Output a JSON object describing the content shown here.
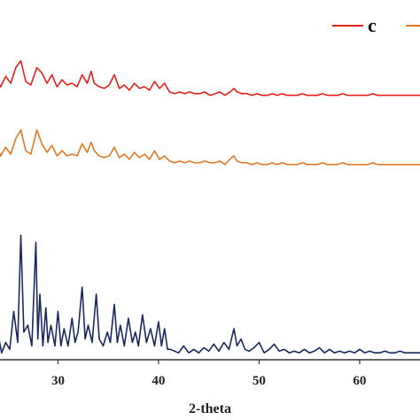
{
  "chart_data": {
    "type": "line",
    "xlabel": "2-theta",
    "ylabel": "",
    "xlim": [
      23,
      66
    ],
    "ylim": [
      0,
      100
    ],
    "grid": false,
    "x_ticks": [
      30,
      40,
      50,
      60
    ],
    "x_tick_labels": [
      "30",
      "40",
      "50",
      "60"
    ],
    "legend": {
      "placement": "top-right",
      "entries": [
        {
          "label": "c",
          "color": "#e8201c"
        },
        {
          "label": "",
          "color": "#e07a28"
        }
      ]
    },
    "series": [
      {
        "name": "c",
        "color": "#e8201c",
        "baseline": 76.5,
        "x": [
          23.0,
          23.3,
          23.8,
          24.3,
          24.8,
          25.3,
          25.8,
          26.3,
          26.8,
          27.3,
          27.9,
          28.4,
          28.9,
          29.4,
          29.9,
          30.4,
          30.9,
          31.4,
          31.9,
          32.4,
          32.9,
          33.3,
          33.6,
          34.1,
          34.6,
          35.1,
          35.6,
          36.1,
          36.6,
          37.1,
          37.6,
          38.1,
          38.6,
          39.1,
          39.6,
          40.1,
          40.6,
          41.1,
          41.6,
          42.1,
          42.6,
          43.1,
          43.6,
          44.1,
          44.6,
          45.1,
          45.6,
          46.1,
          46.6,
          47.1,
          47.5,
          47.8,
          48.3,
          48.8,
          49.3,
          49.8,
          50.3,
          50.8,
          51.3,
          51.8,
          52.3,
          52.8,
          53.3,
          53.8,
          54.3,
          54.8,
          55.3,
          55.8,
          56.3,
          56.8,
          57.3,
          57.8,
          58.3,
          58.8,
          59.3,
          59.8,
          60.3,
          60.8,
          61.3,
          61.8,
          62.3,
          62.8,
          63.3,
          63.8,
          64.3,
          64.8,
          65.3,
          65.8,
          66.0
        ],
        "y": [
          100.0,
          80.0,
          81.5,
          79.0,
          82.0,
          80.0,
          84.5,
          86.5,
          80.5,
          79.5,
          84.5,
          83.0,
          80.0,
          82.5,
          79.0,
          81.0,
          79.5,
          80.0,
          79.0,
          82.5,
          80.0,
          83.5,
          80.0,
          79.0,
          78.5,
          79.5,
          82.5,
          78.5,
          79.5,
          78.0,
          80.0,
          78.5,
          79.0,
          78.0,
          80.5,
          78.5,
          80.0,
          77.5,
          77.0,
          77.5,
          77.0,
          77.5,
          77.0,
          77.0,
          77.5,
          76.5,
          77.0,
          77.5,
          76.5,
          77.5,
          78.5,
          77.5,
          77.0,
          77.0,
          76.5,
          77.0,
          76.5,
          76.5,
          77.0,
          76.5,
          77.0,
          76.5,
          76.5,
          76.5,
          77.0,
          76.5,
          76.5,
          76.5,
          77.0,
          76.5,
          76.5,
          76.5,
          77.0,
          76.5,
          76.5,
          76.5,
          76.5,
          76.5,
          77.0,
          76.5,
          76.5,
          76.5,
          76.5,
          76.5,
          76.5,
          76.5,
          76.5,
          76.5,
          76.5
        ]
      },
      {
        "name": "",
        "color": "#e07a28",
        "baseline": 56.5,
        "x": [
          23.0,
          23.3,
          23.8,
          24.3,
          24.8,
          25.3,
          25.8,
          26.3,
          26.8,
          27.3,
          27.9,
          28.4,
          28.9,
          29.4,
          29.9,
          30.4,
          30.9,
          31.4,
          31.9,
          32.4,
          32.9,
          33.3,
          33.6,
          34.1,
          34.6,
          35.1,
          35.6,
          36.1,
          36.6,
          37.1,
          37.6,
          38.1,
          38.6,
          39.1,
          39.6,
          40.1,
          40.6,
          41.1,
          41.6,
          42.1,
          42.6,
          43.1,
          43.6,
          44.1,
          44.6,
          45.1,
          45.6,
          46.1,
          46.6,
          47.1,
          47.5,
          47.8,
          48.3,
          48.8,
          49.3,
          49.8,
          50.3,
          50.8,
          51.3,
          51.8,
          52.3,
          52.8,
          53.3,
          53.8,
          54.3,
          54.8,
          55.3,
          55.8,
          56.3,
          56.8,
          57.3,
          57.8,
          58.3,
          58.8,
          59.3,
          59.8,
          60.3,
          60.8,
          61.3,
          61.8,
          62.3,
          62.8,
          63.3,
          63.8,
          64.3,
          64.8,
          65.3,
          65.8,
          66.0
        ],
        "y": [
          78.0,
          60.0,
          62.5,
          59.0,
          61.5,
          59.5,
          64.0,
          66.5,
          60.5,
          59.5,
          66.5,
          62.5,
          60.0,
          62.0,
          59.0,
          60.5,
          59.0,
          59.5,
          59.0,
          62.5,
          60.0,
          63.0,
          60.5,
          59.0,
          58.5,
          59.0,
          61.5,
          58.5,
          59.5,
          58.0,
          60.0,
          58.5,
          59.5,
          58.0,
          60.5,
          58.0,
          59.0,
          57.5,
          57.0,
          57.5,
          57.0,
          57.5,
          57.0,
          57.0,
          57.5,
          57.0,
          57.0,
          57.5,
          56.5,
          58.0,
          59.0,
          57.5,
          57.0,
          57.0,
          56.5,
          57.0,
          56.5,
          56.5,
          57.0,
          56.5,
          57.0,
          56.5,
          56.5,
          56.5,
          57.0,
          56.5,
          56.5,
          56.5,
          57.0,
          56.5,
          56.5,
          56.5,
          57.0,
          56.5,
          56.5,
          56.5,
          56.5,
          56.5,
          57.0,
          56.5,
          56.5,
          56.5,
          56.5,
          56.5,
          56.5,
          56.5,
          56.5,
          56.5,
          56.5
        ]
      },
      {
        "name": "",
        "color": "#1a2a5e",
        "baseline": 1.5,
        "x": [
          23.0,
          23.2,
          23.5,
          24.0,
          24.4,
          24.8,
          25.2,
          25.6,
          26.0,
          26.3,
          26.6,
          27.0,
          27.4,
          27.8,
          28.0,
          28.2,
          28.5,
          28.8,
          29.0,
          29.3,
          29.7,
          30.0,
          30.3,
          30.6,
          31.0,
          31.4,
          31.7,
          32.0,
          32.4,
          32.7,
          33.0,
          33.4,
          33.8,
          34.1,
          34.5,
          34.9,
          35.2,
          35.6,
          35.9,
          36.2,
          36.6,
          37.0,
          37.4,
          37.7,
          38.0,
          38.4,
          38.8,
          39.2,
          39.6,
          40.0,
          40.3,
          40.6,
          40.9,
          41.2,
          41.6,
          42.0,
          42.5,
          43.0,
          43.5,
          44.0,
          44.5,
          45.0,
          45.5,
          46.0,
          46.5,
          47.0,
          47.5,
          47.8,
          48.2,
          48.6,
          49.0,
          49.5,
          50.0,
          50.5,
          51.0,
          51.5,
          52.0,
          52.5,
          53.0,
          53.5,
          54.0,
          54.5,
          55.0,
          55.5,
          56.0,
          56.5,
          57.0,
          57.5,
          58.0,
          58.5,
          59.0,
          59.5,
          60.0,
          60.5,
          61.0,
          61.5,
          62.0,
          62.5,
          63.0,
          63.5,
          64.0,
          64.5,
          65.0,
          65.5,
          66.0
        ],
        "y": [
          58.0,
          3.0,
          4.0,
          8.0,
          2.0,
          5.0,
          3.0,
          14.0,
          5.0,
          36.0,
          8.0,
          10.0,
          4.0,
          34.0,
          6.0,
          19.0,
          4.0,
          15.0,
          5.0,
          10.0,
          4.0,
          14.0,
          4.0,
          9.0,
          4.0,
          12.0,
          5.0,
          8.0,
          21.0,
          6.0,
          10.0,
          5.0,
          19.0,
          6.0,
          4.0,
          8.0,
          5.0,
          16.0,
          5.0,
          10.0,
          4.0,
          12.0,
          5.0,
          8.0,
          4.0,
          13.0,
          5.0,
          9.0,
          4.0,
          11.0,
          4.0,
          9.0,
          3.0,
          3.0,
          2.5,
          2.0,
          4.0,
          2.0,
          3.0,
          2.0,
          3.5,
          2.5,
          4.5,
          2.5,
          5.0,
          3.0,
          9.0,
          4.0,
          6.0,
          3.0,
          2.5,
          3.5,
          5.0,
          2.0,
          3.0,
          4.5,
          2.5,
          3.0,
          2.0,
          2.5,
          2.0,
          3.0,
          2.0,
          2.5,
          3.5,
          2.0,
          3.0,
          2.0,
          2.5,
          2.0,
          2.5,
          2.0,
          3.0,
          2.0,
          2.5,
          2.0,
          2.0,
          2.5,
          2.0,
          2.0,
          2.5,
          2.0,
          2.0,
          2.0,
          2.0
        ]
      }
    ]
  }
}
